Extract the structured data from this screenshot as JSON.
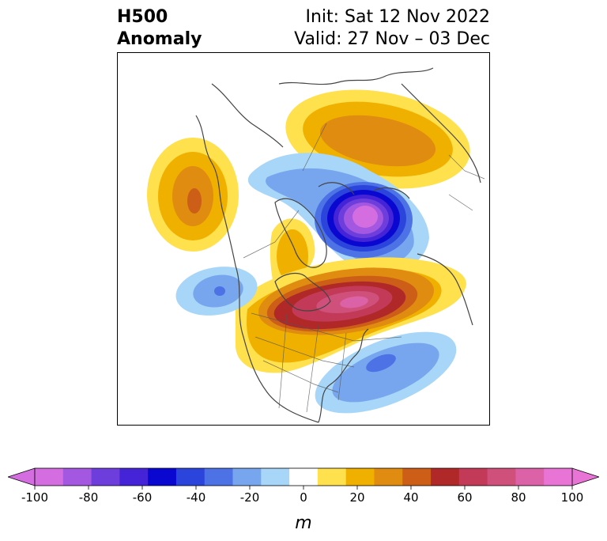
{
  "title": {
    "line1": "H500",
    "line2": "Anomaly",
    "init": "Init: Sat 12 Nov 2022",
    "valid": "Valid: 27 Nov – 03 Dec"
  },
  "colorbar": {
    "unit": "m",
    "ticks": [
      "-100",
      "-80",
      "-60",
      "-40",
      "-20",
      "0",
      "20",
      "40",
      "60",
      "80",
      "100"
    ],
    "levels": [
      -100,
      -90,
      -80,
      -70,
      -60,
      -50,
      -40,
      -30,
      -20,
      -10,
      10,
      20,
      30,
      40,
      50,
      60,
      70,
      80,
      90,
      100
    ],
    "colors": [
      "#d46ee0",
      "#a457e0",
      "#6e3edc",
      "#4424d6",
      "#0a08d0",
      "#2a44dc",
      "#4d72e6",
      "#77a6ee",
      "#a8d6f8",
      "#ffffff",
      "#ffe04d",
      "#f0b000",
      "#df8c10",
      "#cc5e18",
      "#b02828",
      "#c23a58",
      "#d0507c",
      "#dc62a8",
      "#e874d6"
    ],
    "extend_low_color": "#d46ee0",
    "extend_high_color": "#e874d6"
  },
  "anomalies": [
    {
      "name": "ridge-northern-eurasia",
      "peak_m": 40
    },
    {
      "name": "ridge-north-pacific",
      "peak_m": 40
    },
    {
      "name": "trough-arctic",
      "peak_m": -100
    },
    {
      "name": "ridge-greenland-canada",
      "peak_m": 30
    },
    {
      "name": "ridge-central-canada",
      "peak_m": 80
    },
    {
      "name": "trough-northeast-pacific",
      "peak_m": -40
    },
    {
      "name": "trough-western-atlantic",
      "peak_m": -40
    }
  ]
}
